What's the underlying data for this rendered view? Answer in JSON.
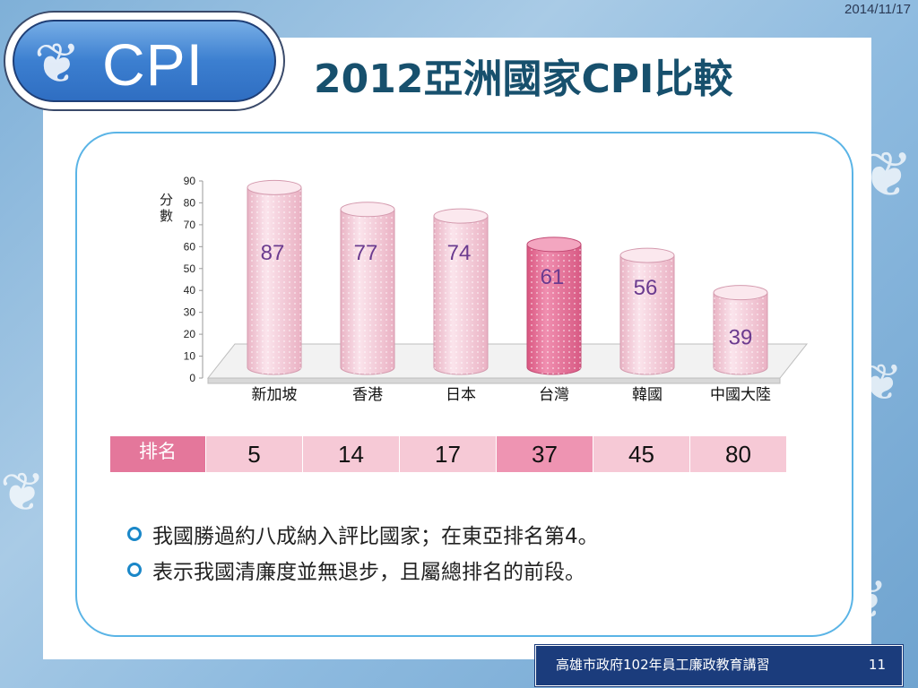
{
  "slide": {
    "date": "2014/11/17",
    "logo_text": "CPI",
    "title": "2012亞洲國家CPI比較",
    "footer_text": "高雄市政府102年員工廉政教育講習",
    "page_number": "11"
  },
  "chart_data": {
    "type": "bar",
    "title": "",
    "ylabel": "分數",
    "ylim": [
      0,
      90
    ],
    "yticks": [
      0,
      10,
      20,
      30,
      40,
      50,
      60,
      70,
      80,
      90
    ],
    "categories": [
      "新加坡",
      "香港",
      "日本",
      "台灣",
      "韓國",
      "中國大陸"
    ],
    "values": [
      87,
      77,
      74,
      61,
      56,
      39
    ],
    "highlight_category": "台灣",
    "colors": {
      "bar": "#f7cdda",
      "highlight": "#e86e98",
      "label": "#6b3b8f"
    }
  },
  "rank_table": {
    "label": "排名",
    "values": [
      "5",
      "14",
      "17",
      "37",
      "45",
      "80"
    ]
  },
  "bullets": [
    "我國勝過約八成納入評比國家；在東亞排名第4。",
    "表示我國清廉度並無退步，且屬總排名的前段。"
  ],
  "icons": {
    "logo": "butterfly-icon",
    "bullet": "ring-bullet-icon"
  }
}
